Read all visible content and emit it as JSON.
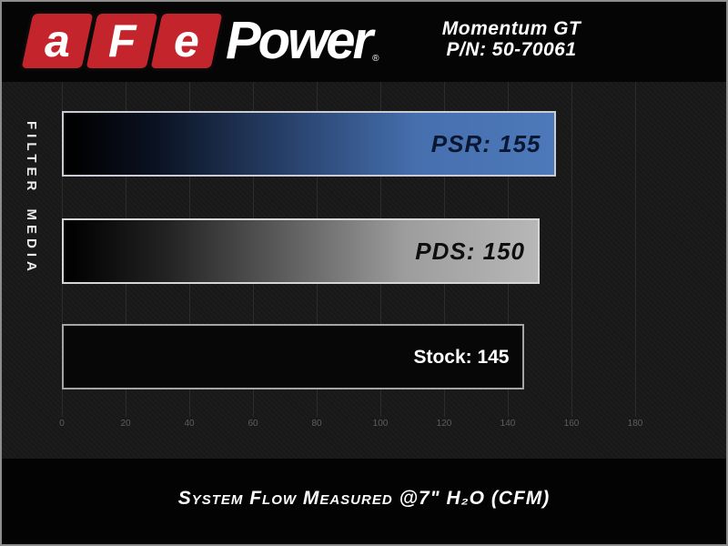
{
  "header": {
    "logo": {
      "red_letters": [
        "a",
        "F",
        "e"
      ],
      "wordmark": "Power",
      "registered_mark": "®"
    },
    "product_line1": "Momentum GT",
    "product_line2": "P/N: 50-70061"
  },
  "chart_data": {
    "type": "bar",
    "orientation": "horizontal",
    "title": "",
    "xlabel": "System Flow Measured @7\" H₂O (CFM)",
    "ylabel": "FILTER MEDIA",
    "categories": [
      "PSR",
      "PDS",
      "Stock"
    ],
    "values": [
      155,
      150,
      145
    ],
    "series": [
      {
        "name": "PSR",
        "value": 155,
        "label": "PSR: 155",
        "fill": "gradient-blue",
        "label_color": "#0b1730",
        "label_italic": true
      },
      {
        "name": "PDS",
        "value": 150,
        "label": "PDS: 150",
        "fill": "gradient-gray",
        "label_color": "#0e0e0e",
        "label_italic": true
      },
      {
        "name": "Stock",
        "value": 145,
        "label": "Stock: 145",
        "fill": "solid-black",
        "label_color": "#ffffff",
        "label_italic": false
      }
    ],
    "x_ticks": [
      0,
      20,
      40,
      60,
      80,
      100,
      120,
      140,
      160,
      180
    ],
    "xlim": [
      0,
      209
    ],
    "grid": true,
    "legend_position": "none"
  },
  "footer": {
    "caption": "System Flow Measured @7\" H₂O (CFM)"
  },
  "colors": {
    "logo_red": "#c4242b",
    "bar_blue": "#4d79ba",
    "bar_gray": "#b7b7b7",
    "bar_black": "#070707",
    "chart_background": "#181818",
    "page_background": "#050505",
    "frame_border": "#8e8e8e"
  }
}
